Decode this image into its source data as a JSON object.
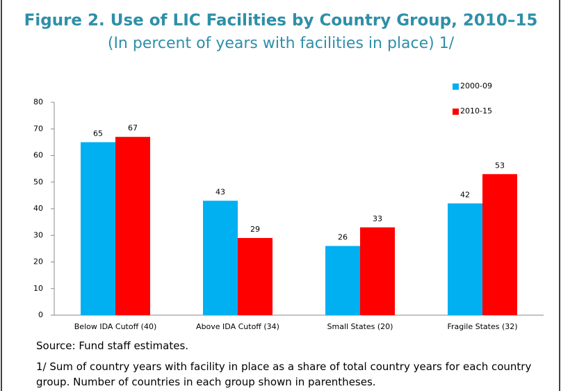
{
  "chart_data": {
    "type": "bar",
    "title": "Figure 2. Use of LIC Facilities by Country Group, 2010–15",
    "subtitle": "(In percent of years with facilities in place) 1/",
    "categories": [
      "Below IDA Cutoff (40)",
      "Above IDA Cutoff (34)",
      "Small States (20)",
      "Fragile States (32)"
    ],
    "series": [
      {
        "name": "2000-09",
        "color": "#00b0f0",
        "values": [
          65,
          43,
          26,
          42
        ]
      },
      {
        "name": "2010-15",
        "color": "#ff0000",
        "values": [
          67,
          29,
          33,
          53
        ]
      }
    ],
    "ylim": [
      0,
      80
    ],
    "yticks": [
      0,
      10,
      20,
      30,
      40,
      50,
      60,
      70,
      80
    ],
    "grid": false,
    "legend": "top-right",
    "source": "Source: Fund staff estimates.",
    "note": "1/ Sum of country years with facility in place as a share of total country years for each country group. Number of countries in each group shown in parentheses."
  }
}
